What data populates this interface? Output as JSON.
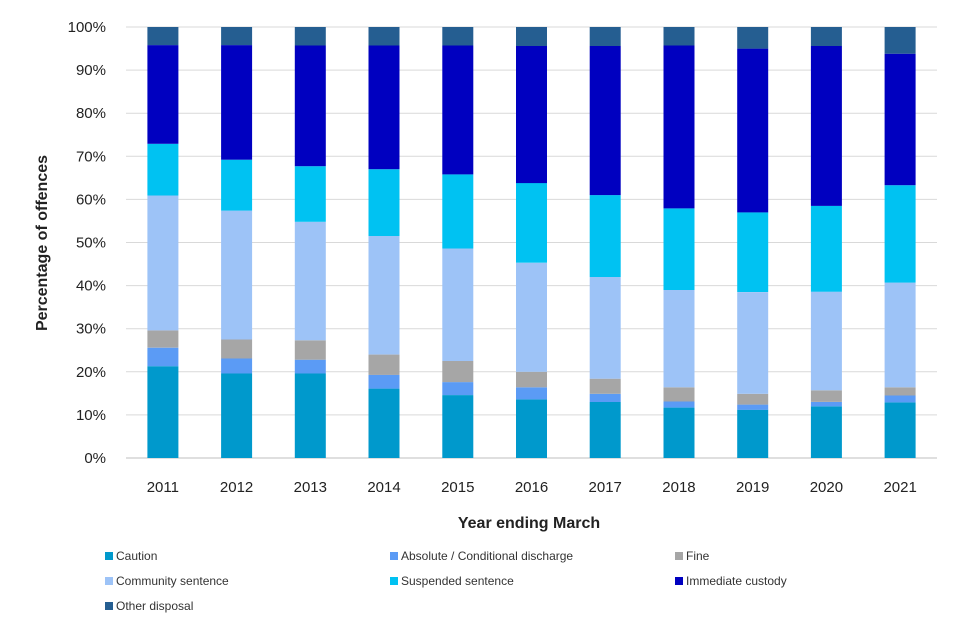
{
  "chart_data": {
    "type": "bar",
    "stacked": true,
    "percent": true,
    "xlabel": "Year ending March",
    "ylabel": "Percentage of offences",
    "ylim": [
      0,
      100
    ],
    "yticks": [
      "0%",
      "10%",
      "20%",
      "30%",
      "40%",
      "50%",
      "60%",
      "70%",
      "80%",
      "90%",
      "100%"
    ],
    "categories": [
      "2011",
      "2012",
      "2013",
      "2014",
      "2015",
      "2016",
      "2017",
      "2018",
      "2019",
      "2020",
      "2021"
    ],
    "grid": true,
    "legend_position": "bottom",
    "series": [
      {
        "name": "Caution",
        "color": "#0099CC",
        "values": [
          21.3,
          19.6,
          19.6,
          16.1,
          14.6,
          13.6,
          13.0,
          11.7,
          11.2,
          12.0,
          12.9
        ]
      },
      {
        "name": "Absolute / Conditional discharge",
        "color": "#5B9BF5",
        "values": [
          4.3,
          3.5,
          3.2,
          3.2,
          3.0,
          2.8,
          1.9,
          1.4,
          1.2,
          1.0,
          1.6
        ]
      },
      {
        "name": "Fine",
        "color": "#A6A6A6",
        "values": [
          4.0,
          4.4,
          4.5,
          4.7,
          4.9,
          3.6,
          3.5,
          3.3,
          2.5,
          2.7,
          1.9
        ]
      },
      {
        "name": "Community sentence",
        "color": "#9DC3F7",
        "values": [
          31.3,
          29.9,
          27.5,
          27.5,
          26.1,
          25.3,
          23.6,
          22.6,
          23.6,
          22.9,
          24.3
        ]
      },
      {
        "name": "Suspended sentence",
        "color": "#00C2F2",
        "values": [
          12.0,
          11.8,
          12.9,
          15.5,
          17.2,
          18.5,
          19.0,
          18.9,
          18.5,
          19.9,
          22.6
        ]
      },
      {
        "name": "Immediate custody",
        "color": "#0000C0",
        "values": [
          22.9,
          26.6,
          28.0,
          28.7,
          29.9,
          31.8,
          34.6,
          37.8,
          38.0,
          37.1,
          30.5
        ]
      },
      {
        "name": "Other disposal",
        "color": "#255E91",
        "values": [
          4.2,
          4.2,
          4.3,
          4.3,
          4.3,
          4.4,
          4.4,
          4.3,
          5.0,
          4.4,
          6.2
        ]
      }
    ]
  }
}
